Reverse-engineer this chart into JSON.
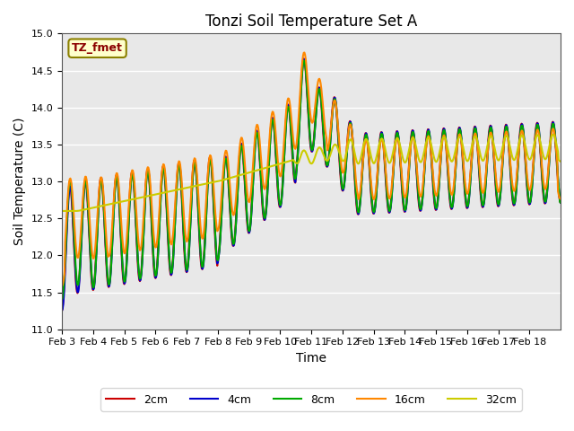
{
  "title": "Tonzi Soil Temperature Set A",
  "xlabel": "Time",
  "ylabel": "Soil Temperature (C)",
  "ylim": [
    11.0,
    15.0
  ],
  "yticks": [
    11.0,
    11.5,
    12.0,
    12.5,
    13.0,
    13.5,
    14.0,
    14.5,
    15.0
  ],
  "annotation": "TZ_fmet",
  "annotation_color": "#8B0000",
  "annotation_bg": "#FFFFCC",
  "background_color": "#E8E8E8",
  "grid_color": "white",
  "legend_entries": [
    "2cm",
    "4cm",
    "8cm",
    "16cm",
    "32cm"
  ],
  "line_colors": [
    "#CC0000",
    "#0000CC",
    "#00AA00",
    "#FF8800",
    "#CCCC00"
  ],
  "line_width": 1.5,
  "x_labels": [
    "Feb 3",
    "Feb 4",
    "Feb 5",
    "Feb 6",
    "Feb 7",
    "Feb 8",
    "Feb 9",
    "Feb 10",
    "Feb 11",
    "Feb 12",
    "Feb 13",
    "Feb 14",
    "Feb 15",
    "Feb 16",
    "Feb 17",
    "Feb 18"
  ]
}
